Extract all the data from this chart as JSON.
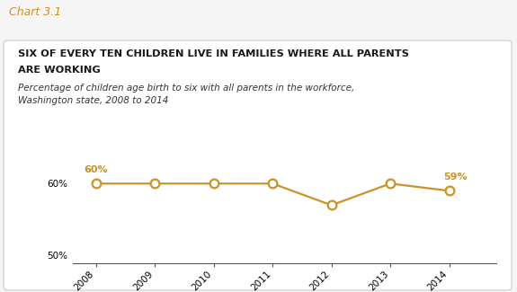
{
  "chart_label": "Chart 3.1",
  "title_line1": "SIX OF EVERY TEN CHILDREN LIVE IN FAMILIES WHERE ALL PARENTS",
  "title_line2": "ARE WORKING",
  "subtitle_line1": "Percentage of children age birth to six with all parents in the workforce,",
  "subtitle_line2": "Washington state, 2008 to 2014",
  "years": [
    2008,
    2009,
    2010,
    2011,
    2012,
    2013,
    2014
  ],
  "values": [
    60,
    60,
    60,
    60,
    57,
    60,
    59
  ],
  "line_color": "#C9922A",
  "marker_face": "#FFFFFF",
  "label_first": "60%",
  "label_last": "59%",
  "ylim_min": 49,
  "ylim_max": 64,
  "yticks": [
    50,
    60
  ],
  "ytick_labels": [
    "50%",
    "60%"
  ],
  "background_color": "#F5F5F5",
  "box_background": "#FFFFFF",
  "chart_label_color": "#C9922A",
  "title_color": "#1a1a1a",
  "subtitle_color": "#333333",
  "spine_color": "#555555"
}
